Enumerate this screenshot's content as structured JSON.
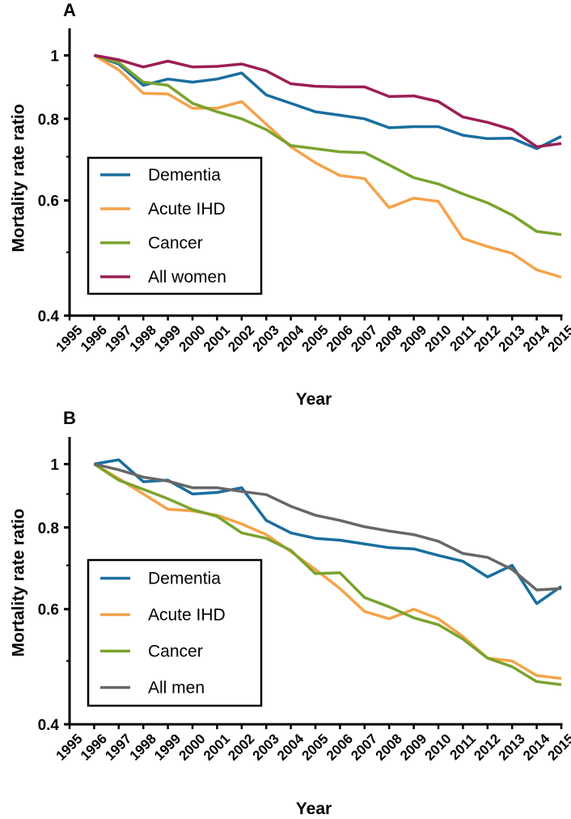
{
  "chart_data": [
    {
      "type": "line",
      "panel_label": "A",
      "title": "",
      "xlabel": "Year",
      "ylabel": "Mortality rate ratio",
      "y_scale": "log",
      "ylim": [
        0.4,
        1.1
      ],
      "yticks": [
        0.4,
        0.6,
        0.8,
        1
      ],
      "ytick_labels": [
        "0.4",
        "0.6",
        "0.8",
        "1"
      ],
      "x": [
        "1995",
        "1996",
        "1997",
        "1998",
        "1999",
        "2000",
        "2001",
        "2002",
        "2003",
        "2004",
        "2005",
        "2006",
        "2007",
        "2008",
        "2009",
        "2010",
        "2011",
        "2012",
        "2013",
        "2014",
        "2015"
      ],
      "legend_position": "lower-left",
      "series": [
        {
          "name": "Dementia",
          "color": "#1a6e9e",
          "values": [
            null,
            1.0,
            0.97,
            0.9,
            0.92,
            0.91,
            0.92,
            0.94,
            0.87,
            0.845,
            0.82,
            0.81,
            0.8,
            0.775,
            0.778,
            0.778,
            0.755,
            0.746,
            0.747,
            0.72,
            0.752
          ]
        },
        {
          "name": "Acute IHD",
          "color": "#f5a34a",
          "values": [
            null,
            1.0,
            0.95,
            0.875,
            0.873,
            0.83,
            0.83,
            0.85,
            0.785,
            0.725,
            0.685,
            0.655,
            0.648,
            0.585,
            0.605,
            0.598,
            0.525,
            0.51,
            0.498,
            0.47,
            0.458
          ]
        },
        {
          "name": "Cancer",
          "color": "#7aa32e",
          "values": [
            null,
            1.0,
            0.975,
            0.91,
            0.9,
            0.845,
            0.82,
            0.8,
            0.77,
            0.728,
            0.72,
            0.712,
            0.71,
            0.68,
            0.65,
            0.636,
            0.614,
            0.595,
            0.57,
            0.538,
            0.532
          ]
        },
        {
          "name": "All women",
          "color": "#9b1f55",
          "values": [
            null,
            1.0,
            0.985,
            0.96,
            0.98,
            0.96,
            0.962,
            0.97,
            0.947,
            0.905,
            0.897,
            0.895,
            0.895,
            0.865,
            0.867,
            0.85,
            0.805,
            0.79,
            0.77,
            0.725,
            0.733
          ]
        }
      ]
    },
    {
      "type": "line",
      "panel_label": "B",
      "title": "",
      "xlabel": "Year",
      "ylabel": "Mortality rate ratio",
      "y_scale": "log",
      "ylim": [
        0.4,
        1.1
      ],
      "yticks": [
        0.4,
        0.6,
        0.8,
        1
      ],
      "ytick_labels": [
        "0.4",
        "0.6",
        "0.8",
        "1"
      ],
      "x": [
        "1995",
        "1996",
        "1997",
        "1998",
        "1999",
        "2000",
        "2001",
        "2002",
        "2003",
        "2004",
        "2005",
        "2006",
        "2007",
        "2008",
        "2009",
        "2010",
        "2011",
        "2012",
        "2013",
        "2014",
        "2015"
      ],
      "legend_position": "lower-left",
      "series": [
        {
          "name": "Dementia",
          "color": "#1a6e9e",
          "values": [
            null,
            1.0,
            1.015,
            0.94,
            0.945,
            0.9,
            0.905,
            0.92,
            0.82,
            0.785,
            0.77,
            0.765,
            0.755,
            0.745,
            0.742,
            0.725,
            0.71,
            0.672,
            0.7,
            0.612,
            0.65
          ]
        },
        {
          "name": "Acute IHD",
          "color": "#f5a34a",
          "values": [
            null,
            1.0,
            0.95,
            0.9,
            0.853,
            0.848,
            0.835,
            0.81,
            0.78,
            0.735,
            0.69,
            0.645,
            0.595,
            0.58,
            0.6,
            0.58,
            0.545,
            0.505,
            0.5,
            0.475,
            0.47
          ]
        },
        {
          "name": "Cancer",
          "color": "#7aa32e",
          "values": [
            null,
            1.0,
            0.945,
            0.915,
            0.885,
            0.852,
            0.832,
            0.785,
            0.77,
            0.738,
            0.68,
            0.682,
            0.625,
            0.605,
            0.582,
            0.568,
            0.54,
            0.505,
            0.49,
            0.465,
            0.46
          ]
        },
        {
          "name": "All men",
          "color": "#676767",
          "values": [
            null,
            1.0,
            0.98,
            0.955,
            0.942,
            0.92,
            0.92,
            0.908,
            0.898,
            0.862,
            0.835,
            0.82,
            0.802,
            0.79,
            0.78,
            0.762,
            0.73,
            0.72,
            0.69,
            0.642,
            0.645
          ]
        }
      ]
    }
  ]
}
